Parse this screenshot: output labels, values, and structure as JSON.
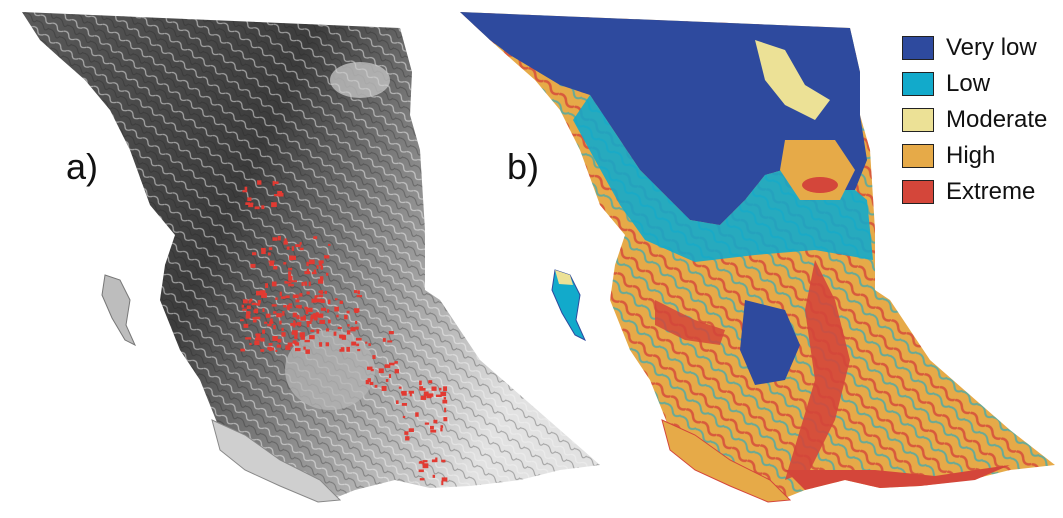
{
  "panels": {
    "a": {
      "label": "a)"
    },
    "b": {
      "label": "b)"
    }
  },
  "legend": {
    "items": [
      {
        "label": "Very low",
        "color": "#2e4a9e"
      },
      {
        "label": "Low",
        "color": "#12aacb"
      },
      {
        "label": "Moderate",
        "color": "#ece196"
      },
      {
        "label": "High",
        "color": "#e6aa48"
      },
      {
        "label": "Extreme",
        "color": "#d4463a"
      }
    ]
  },
  "colors": {
    "terrain_dark": "#3a3a3a",
    "terrain_mid": "#8c8c8c",
    "terrain_light": "#dcdcdc",
    "fire_points": "#e23a32"
  }
}
